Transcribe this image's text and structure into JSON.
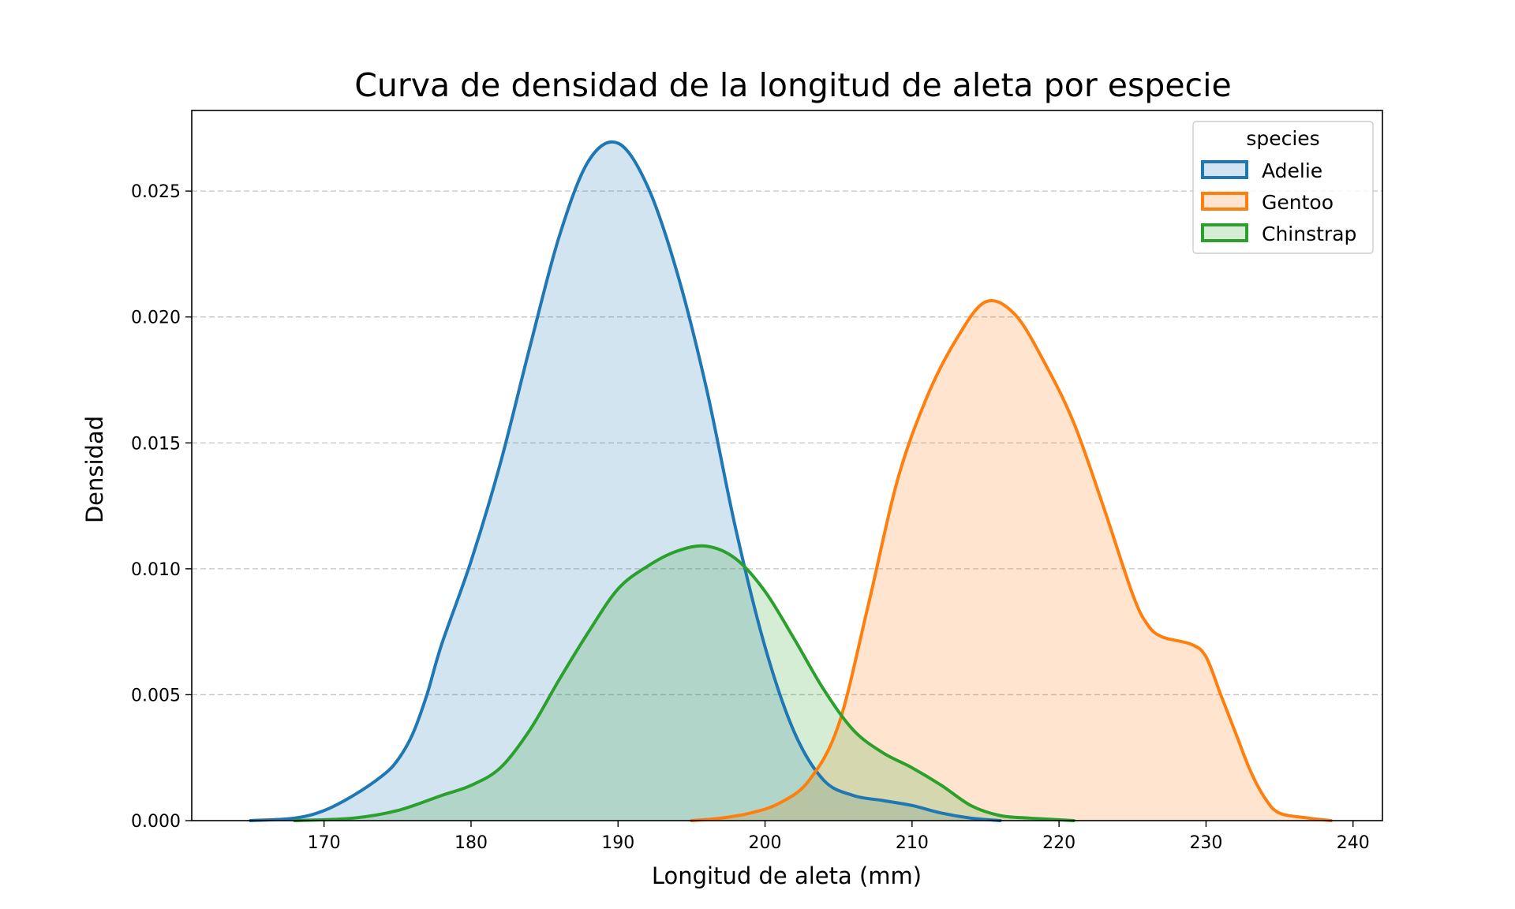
{
  "chart_data": {
    "type": "area",
    "title": "Curva de densidad de la longitud de aleta por especie",
    "xlabel": "Longitud de aleta (mm)",
    "ylabel": "Densidad",
    "xlim": [
      161,
      242
    ],
    "ylim": [
      0,
      0.0282
    ],
    "xticks": [
      170,
      180,
      190,
      200,
      210,
      220,
      230,
      240
    ],
    "yticks": [
      0.0,
      0.005,
      0.01,
      0.015,
      0.02,
      0.025
    ],
    "ytick_labels": [
      "0.000",
      "0.005",
      "0.010",
      "0.015",
      "0.020",
      "0.025"
    ],
    "grid": "horizontal-dashed",
    "legend": {
      "title": "species",
      "placement": "top-right"
    },
    "series": [
      {
        "name": "Adelie",
        "color": "#1f77b4",
        "points": [
          [
            165,
            0.0
          ],
          [
            168,
            0.0001
          ],
          [
            170,
            0.0004
          ],
          [
            172,
            0.001
          ],
          [
            174,
            0.0018
          ],
          [
            175,
            0.0024
          ],
          [
            176,
            0.0034
          ],
          [
            177,
            0.005
          ],
          [
            178,
            0.007
          ],
          [
            180,
            0.0103
          ],
          [
            182,
            0.0142
          ],
          [
            184,
            0.0188
          ],
          [
            186,
            0.0232
          ],
          [
            188,
            0.0262
          ],
          [
            190,
            0.0269
          ],
          [
            192,
            0.0252
          ],
          [
            194,
            0.0218
          ],
          [
            196,
            0.0172
          ],
          [
            198,
            0.0116
          ],
          [
            200,
            0.0069
          ],
          [
            202,
            0.0035
          ],
          [
            204,
            0.0016
          ],
          [
            206,
            0.001
          ],
          [
            208,
            0.0008
          ],
          [
            210,
            0.0006
          ],
          [
            212,
            0.0003
          ],
          [
            214,
            0.0001
          ],
          [
            216,
            0.0
          ]
        ]
      },
      {
        "name": "Gentoo",
        "color": "#ff7f0e",
        "points": [
          [
            195,
            0.0
          ],
          [
            197,
            0.0001
          ],
          [
            199,
            0.0003
          ],
          [
            201,
            0.0007
          ],
          [
            203,
            0.0016
          ],
          [
            205,
            0.0038
          ],
          [
            207,
            0.0085
          ],
          [
            209,
            0.0135
          ],
          [
            211,
            0.0168
          ],
          [
            213,
            0.0191
          ],
          [
            215,
            0.0206
          ],
          [
            217,
            0.0201
          ],
          [
            219,
            0.0182
          ],
          [
            221,
            0.0158
          ],
          [
            223,
            0.0125
          ],
          [
            225,
            0.009
          ],
          [
            226,
            0.0078
          ],
          [
            227,
            0.0073
          ],
          [
            229,
            0.007
          ],
          [
            230,
            0.0065
          ],
          [
            231,
            0.005
          ],
          [
            232,
            0.0035
          ],
          [
            233,
            0.002
          ],
          [
            234,
            0.0009
          ],
          [
            235,
            0.0003
          ],
          [
            237,
            0.0001
          ],
          [
            238.5,
            0.0
          ]
        ]
      },
      {
        "name": "Chinstrap",
        "color": "#2ca02c",
        "points": [
          [
            168,
            0.0
          ],
          [
            172,
            0.0001
          ],
          [
            175,
            0.0004
          ],
          [
            178,
            0.001
          ],
          [
            180,
            0.0014
          ],
          [
            182,
            0.0021
          ],
          [
            184,
            0.0036
          ],
          [
            186,
            0.0056
          ],
          [
            188,
            0.0075
          ],
          [
            190,
            0.0092
          ],
          [
            192,
            0.0101
          ],
          [
            194,
            0.0107
          ],
          [
            196,
            0.0109
          ],
          [
            198,
            0.0104
          ],
          [
            200,
            0.0091
          ],
          [
            202,
            0.0072
          ],
          [
            204,
            0.0052
          ],
          [
            206,
            0.0036
          ],
          [
            208,
            0.0027
          ],
          [
            210,
            0.0021
          ],
          [
            212,
            0.0014
          ],
          [
            214,
            0.0006
          ],
          [
            216,
            0.0002
          ],
          [
            218,
            0.0001
          ],
          [
            221,
            0.0
          ]
        ]
      }
    ]
  }
}
